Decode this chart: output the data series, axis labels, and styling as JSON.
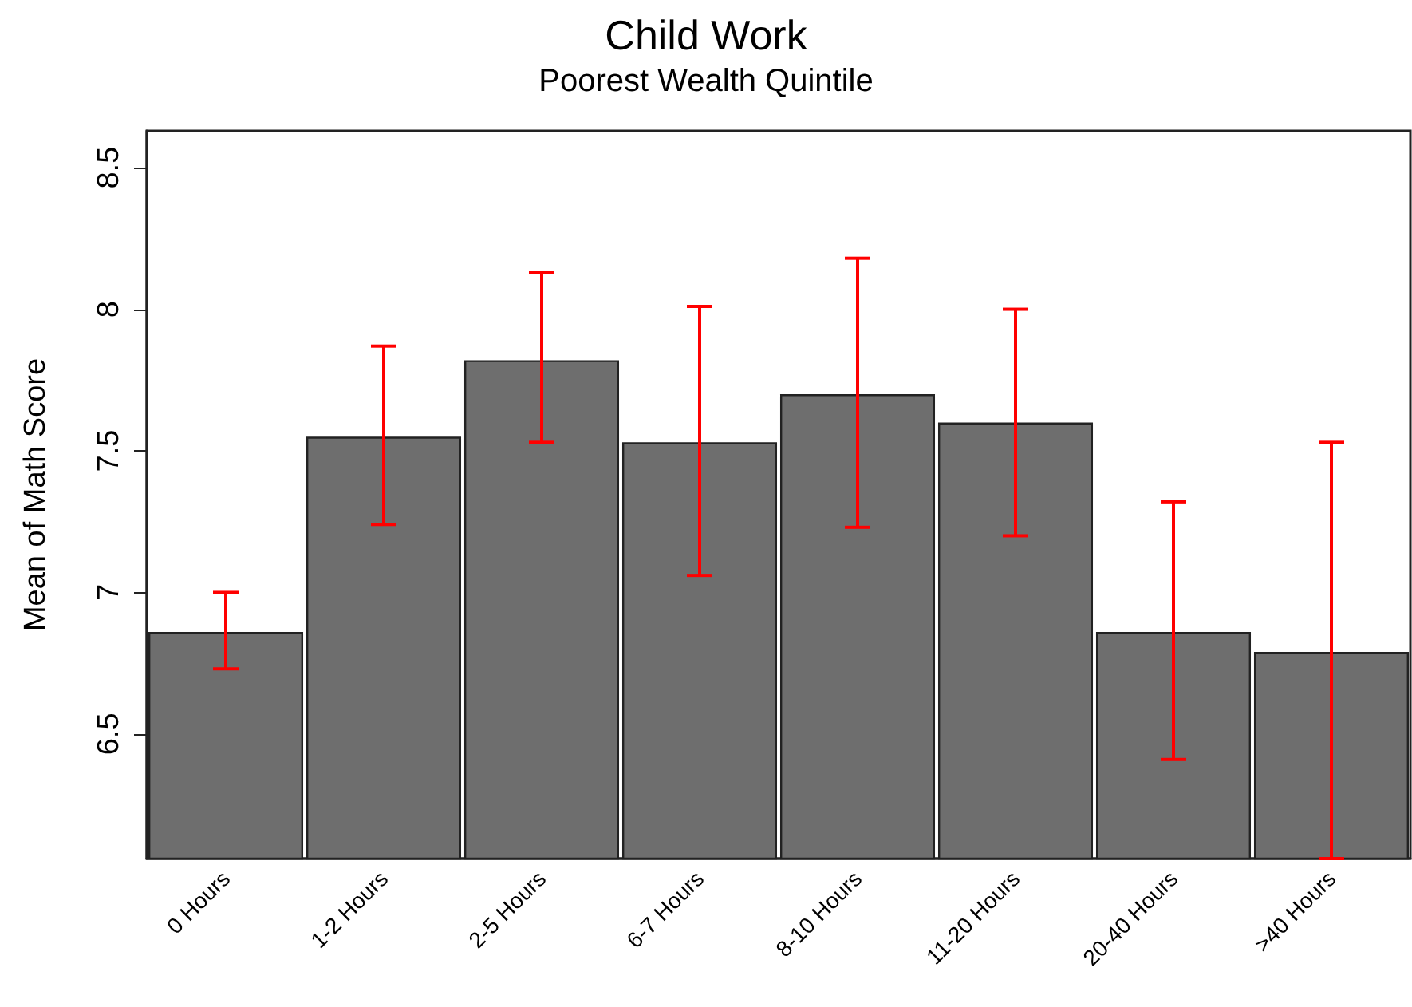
{
  "chart_data": {
    "type": "bar",
    "title": "Child Work",
    "subtitle": "Poorest Wealth Quintile",
    "ylabel": "Mean of Math Score",
    "categories": [
      "0 Hours",
      "1-2 Hours",
      "2-5 Hours",
      "6-7 Hours",
      "8-10 Hours",
      "11-20 Hours",
      "20-40 Hours",
      ">40 Hours"
    ],
    "values": [
      6.86,
      7.55,
      7.82,
      7.53,
      7.7,
      7.6,
      6.86,
      6.79
    ],
    "errors": [
      [
        6.73,
        7.0
      ],
      [
        7.24,
        7.87
      ],
      [
        7.53,
        8.13
      ],
      [
        7.06,
        8.01
      ],
      [
        7.23,
        8.18
      ],
      [
        7.2,
        8.0
      ],
      [
        6.41,
        7.32
      ],
      [
        6.06,
        7.53
      ]
    ],
    "color": "#6e6e6e",
    "ylim": [
      6.06,
      8.63
    ],
    "yticks": [
      6.5,
      7,
      7.5,
      8,
      8.5
    ],
    "grid": false
  }
}
